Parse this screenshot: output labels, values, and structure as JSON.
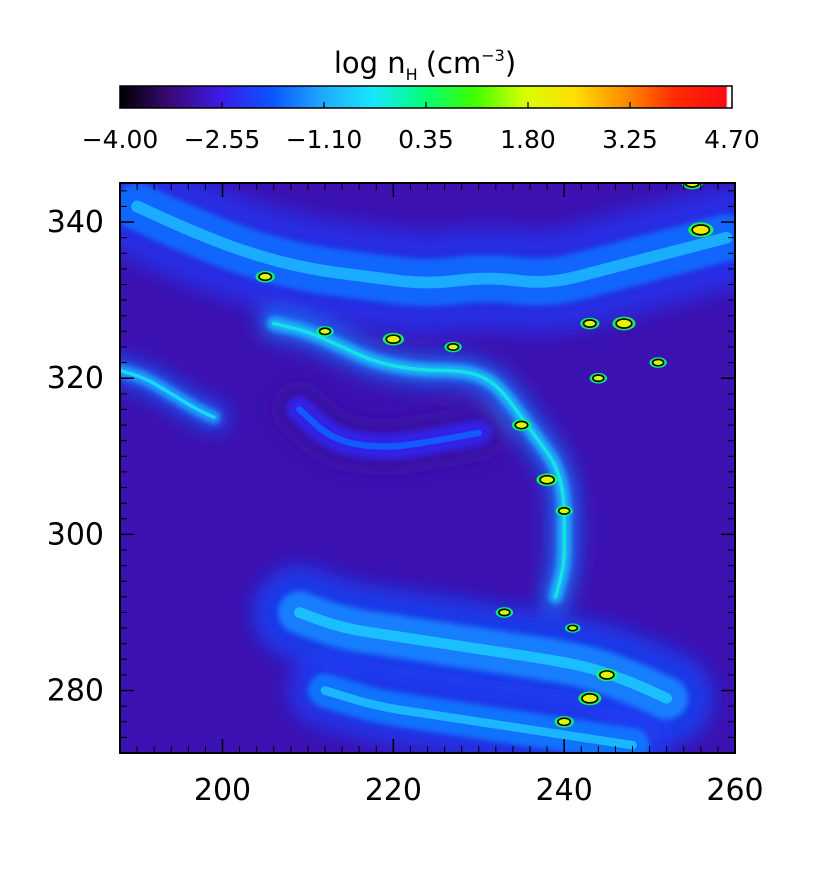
{
  "chart_data": {
    "type": "heatmap",
    "title": "",
    "colorbar": {
      "label_main": "log n",
      "label_sub": "H",
      "label_unit_open": "(cm",
      "label_unit_exp": "−3",
      "label_unit_close": ")",
      "ticks": [
        "−4.00",
        "−2.55",
        "−1.10",
        "0.35",
        "1.80",
        "3.25",
        "4.70"
      ],
      "range": [
        -4.0,
        4.7
      ],
      "colormap": [
        "#000000",
        "#3a0a78",
        "#3d1ae8",
        "#0a55ff",
        "#1fa8ff",
        "#19e6ff",
        "#00ff7c",
        "#3cff00",
        "#d6ff00",
        "#ffdf00",
        "#ff8c00",
        "#ff2a00",
        "#ff0a14",
        "#ffffff"
      ]
    },
    "x_axis": {
      "label": "",
      "range": [
        188,
        260
      ],
      "ticks": [
        200,
        220,
        240,
        260
      ],
      "tick_labels": [
        "200",
        "220",
        "240",
        "260"
      ]
    },
    "y_axis": {
      "label": "",
      "range": [
        272,
        345
      ],
      "ticks": [
        280,
        300,
        320,
        340
      ],
      "tick_labels": [
        "280",
        "300",
        "320",
        "340"
      ]
    },
    "background_value": -2.9,
    "colors": {
      "background": "#4319ae",
      "filament": "#1478ff",
      "dense": "#19c8ff",
      "clump": "#ffd400",
      "contour": "#000000"
    },
    "filaments": [
      {
        "name": "upper-band",
        "points": [
          [
            190,
            342
          ],
          [
            196,
            339
          ],
          [
            203,
            336
          ],
          [
            210,
            334
          ],
          [
            217,
            333
          ],
          [
            224,
            332
          ],
          [
            231,
            333
          ],
          [
            238,
            332
          ],
          [
            245,
            334
          ],
          [
            252,
            336
          ],
          [
            259,
            338
          ]
        ],
        "value": -1.6,
        "width": 5.5
      },
      {
        "name": "left-branch",
        "points": [
          [
            188,
            321
          ],
          [
            191,
            320
          ],
          [
            194,
            318
          ],
          [
            197,
            316
          ],
          [
            199,
            315
          ]
        ],
        "value": -1.1,
        "width": 1.5
      },
      {
        "name": "middle-ridge",
        "points": [
          [
            206,
            327
          ],
          [
            210,
            326
          ],
          [
            214,
            324
          ],
          [
            218,
            322
          ],
          [
            223,
            321
          ],
          [
            228,
            321
          ],
          [
            231,
            320
          ],
          [
            233,
            318
          ],
          [
            235,
            315
          ],
          [
            237,
            312
          ],
          [
            239,
            309
          ],
          [
            240,
            305
          ],
          [
            240,
            300
          ],
          [
            240,
            296
          ],
          [
            239,
            292
          ]
        ],
        "value": -0.9,
        "width": 1.6
      },
      {
        "name": "lower-band",
        "points": [
          [
            209,
            290
          ],
          [
            214,
            288
          ],
          [
            220,
            287
          ],
          [
            226,
            286
          ],
          [
            232,
            285
          ],
          [
            238,
            284
          ],
          [
            243,
            283
          ],
          [
            248,
            281
          ],
          [
            252,
            279
          ]
        ],
        "value": -1.4,
        "width": 5.0
      },
      {
        "name": "bottom-band",
        "points": [
          [
            212,
            280
          ],
          [
            218,
            278
          ],
          [
            224,
            277
          ],
          [
            230,
            276
          ],
          [
            236,
            275
          ],
          [
            242,
            274
          ],
          [
            248,
            273
          ]
        ],
        "value": -1.5,
        "width": 4.0
      },
      {
        "name": "diffuse-arc",
        "points": [
          [
            209,
            316
          ],
          [
            213,
            312
          ],
          [
            219,
            311
          ],
          [
            225,
            312
          ],
          [
            230,
            313
          ]
        ],
        "value": -2.4,
        "width": 3.0
      }
    ],
    "clumps": [
      {
        "x": 205,
        "y": 333,
        "value": 1.9
      },
      {
        "x": 212,
        "y": 326,
        "value": 1.8
      },
      {
        "x": 220,
        "y": 325,
        "value": 2.0
      },
      {
        "x": 227,
        "y": 324,
        "value": 1.8
      },
      {
        "x": 235,
        "y": 314,
        "value": 1.9
      },
      {
        "x": 238,
        "y": 307,
        "value": 2.0
      },
      {
        "x": 240,
        "y": 303,
        "value": 1.8
      },
      {
        "x": 243,
        "y": 327,
        "value": 1.9
      },
      {
        "x": 247,
        "y": 327,
        "value": 2.1
      },
      {
        "x": 256,
        "y": 339,
        "value": 2.2
      },
      {
        "x": 255,
        "y": 345,
        "value": 2.0
      },
      {
        "x": 233,
        "y": 290,
        "value": 1.8
      },
      {
        "x": 245,
        "y": 282,
        "value": 2.0
      },
      {
        "x": 243,
        "y": 279,
        "value": 2.1
      },
      {
        "x": 240,
        "y": 276,
        "value": 1.9
      },
      {
        "x": 244,
        "y": 320,
        "value": 1.8
      },
      {
        "x": 251,
        "y": 322,
        "value": 1.8
      },
      {
        "x": 241,
        "y": 288,
        "value": 1.7
      }
    ]
  }
}
